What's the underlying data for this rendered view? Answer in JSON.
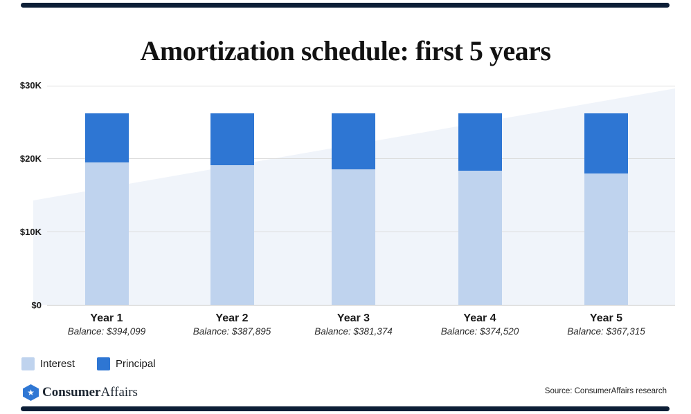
{
  "chart_data": {
    "type": "bar",
    "stacked": true,
    "title": "Amortization schedule: first 5 years",
    "categories": [
      "Year 1",
      "Year 2",
      "Year 3",
      "Year 4",
      "Year 5"
    ],
    "category_sublabels": [
      "Balance: $394,099",
      "Balance: $387,895",
      "Balance: $381,374",
      "Balance: $374,520",
      "Balance: $367,315"
    ],
    "series": [
      {
        "name": "Interest",
        "color": "#BFD3EE",
        "values": [
          19500,
          19100,
          18600,
          18350,
          18000
        ]
      },
      {
        "name": "Principal",
        "color": "#2E76D3",
        "values": [
          6700,
          7100,
          7600,
          7850,
          8200
        ]
      }
    ],
    "yticks": [
      {
        "value": 0,
        "label": "$0"
      },
      {
        "value": 10000,
        "label": "$10K"
      },
      {
        "value": 20000,
        "label": "$20K"
      },
      {
        "value": 30000,
        "label": "$30K"
      }
    ],
    "ylim": [
      0,
      30000
    ],
    "grid": "horizontal",
    "legend_position": "bottom-left"
  },
  "colors": {
    "accent_navy": "#0C1E36",
    "interest_blue": "#BFD3EE",
    "principal_blue": "#2E76D3",
    "background_wedge": "#F0F4FA",
    "logo_blue": "#2F77D4"
  },
  "footer": {
    "brand_bold": "Consumer",
    "brand_regular": "Affairs",
    "star_icon": "★",
    "source": "Source: ConsumerAffairs research"
  }
}
